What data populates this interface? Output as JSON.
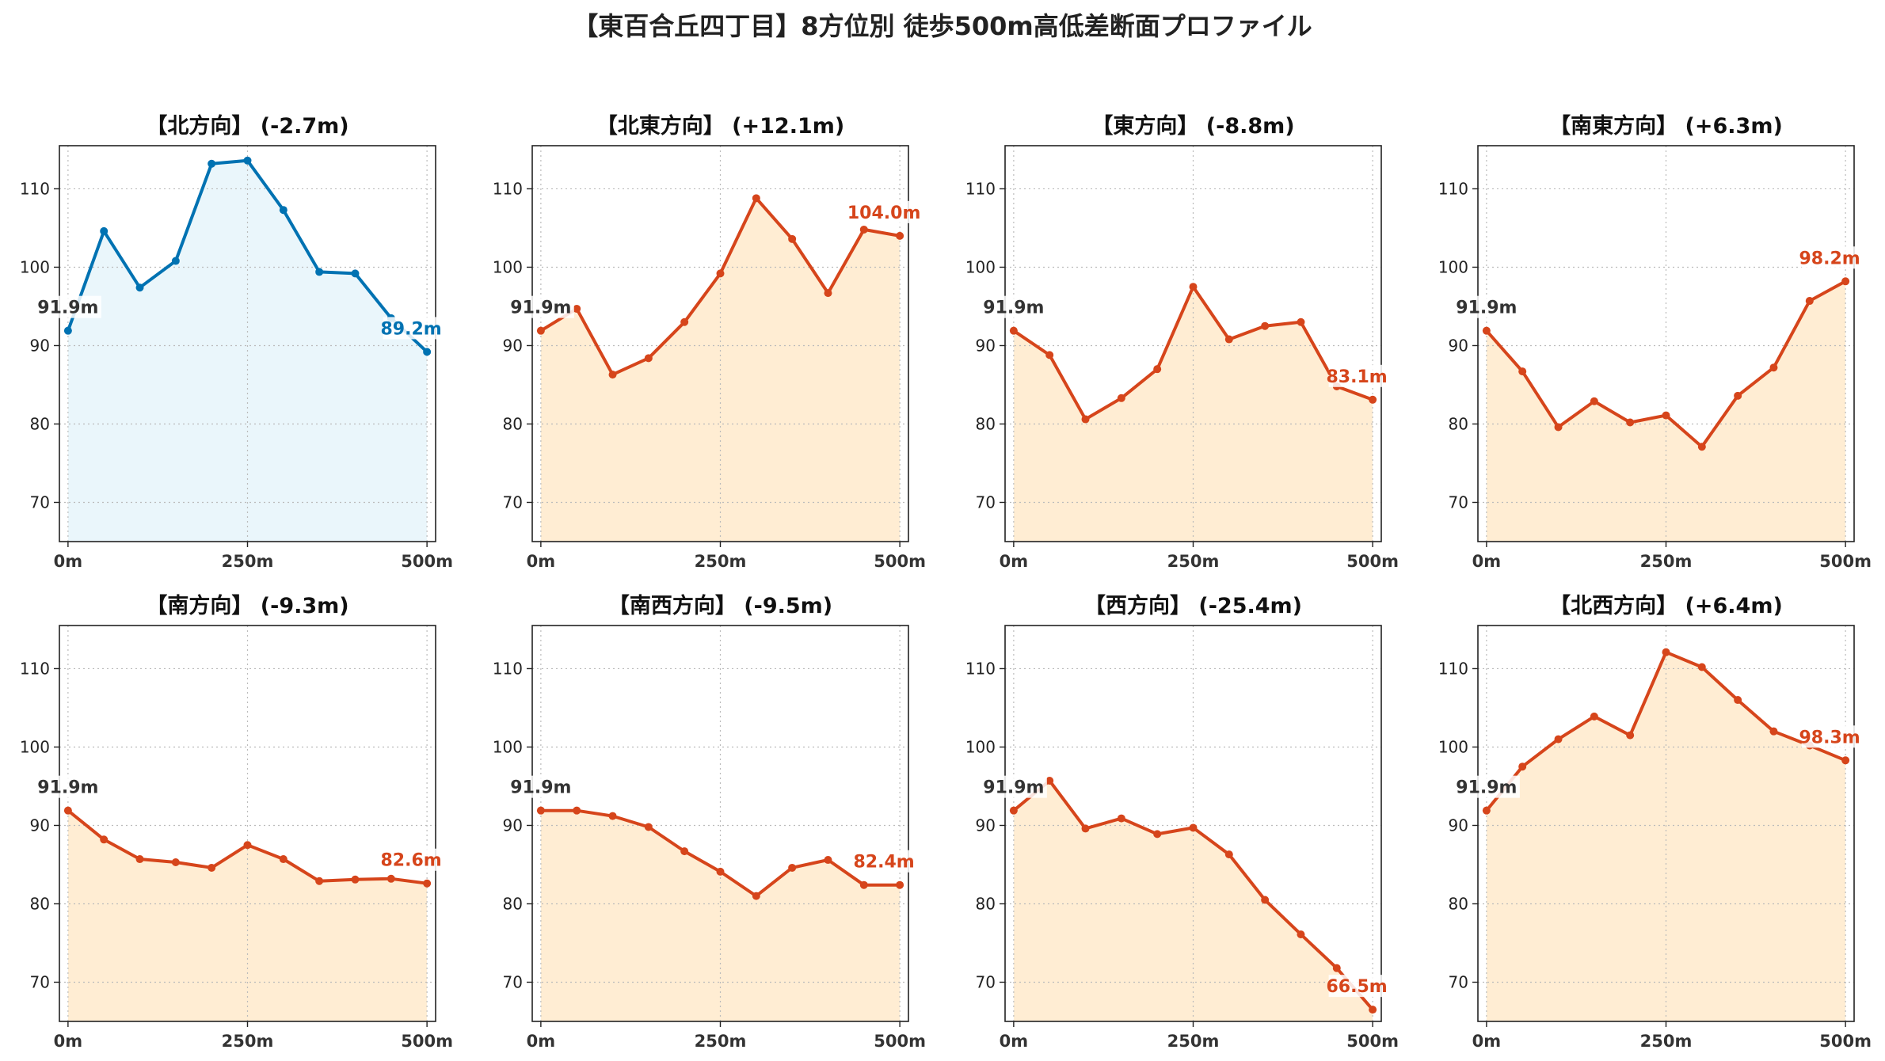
{
  "title": "【東百合丘四丁目】8方位別 徒歩500m高低差断面プロファイル",
  "colors": {
    "uphill": "#0072b2",
    "uphill_fill": "#eaf6fb",
    "downhill": "#d6451b",
    "downhill_fill": "#ffedd3",
    "start_label": "#333333",
    "grid": "#bbbbbb"
  },
  "chart_data": [
    {
      "type": "area",
      "title": "【北方向】 (-2.7m)",
      "x": [
        0,
        50,
        100,
        150,
        200,
        250,
        300,
        350,
        400,
        450,
        500
      ],
      "y": [
        91.9,
        104.6,
        97.4,
        100.8,
        113.2,
        113.6,
        107.3,
        99.4,
        99.2,
        93.5,
        89.2
      ],
      "start_label": "91.9m",
      "end_label": "89.2m",
      "style": "uphill",
      "xticks": [
        "0m",
        "250m",
        "500m"
      ],
      "yticks": [
        70,
        80,
        90,
        100,
        110
      ],
      "ylim": [
        65,
        115.5
      ],
      "xlim": [
        -12,
        512
      ],
      "grid": true
    },
    {
      "type": "area",
      "title": "【北東方向】 (+12.1m)",
      "x": [
        0,
        50,
        100,
        150,
        200,
        250,
        300,
        350,
        400,
        450,
        500
      ],
      "y": [
        91.9,
        94.7,
        86.3,
        88.4,
        93.0,
        99.2,
        108.8,
        103.6,
        96.7,
        104.8,
        104.0
      ],
      "start_label": "91.9m",
      "end_label": "104.0m",
      "style": "downhill",
      "xticks": [
        "0m",
        "250m",
        "500m"
      ],
      "yticks": [
        70,
        80,
        90,
        100,
        110
      ],
      "ylim": [
        65,
        115.5
      ],
      "xlim": [
        -12,
        512
      ],
      "grid": true
    },
    {
      "type": "area",
      "title": "【東方向】 (-8.8m)",
      "x": [
        0,
        50,
        100,
        150,
        200,
        250,
        300,
        350,
        400,
        450,
        500
      ],
      "y": [
        91.9,
        88.8,
        80.6,
        83.3,
        87.0,
        97.5,
        90.8,
        92.5,
        93.0,
        84.8,
        83.1
      ],
      "start_label": "91.9m",
      "end_label": "83.1m",
      "style": "downhill",
      "xticks": [
        "0m",
        "250m",
        "500m"
      ],
      "yticks": [
        70,
        80,
        90,
        100,
        110
      ],
      "ylim": [
        65,
        115.5
      ],
      "xlim": [
        -12,
        512
      ],
      "grid": true
    },
    {
      "type": "area",
      "title": "【南東方向】 (+6.3m)",
      "x": [
        0,
        50,
        100,
        150,
        200,
        250,
        300,
        350,
        400,
        450,
        500
      ],
      "y": [
        91.9,
        86.7,
        79.6,
        82.9,
        80.2,
        81.1,
        77.1,
        83.6,
        87.2,
        95.7,
        98.2
      ],
      "start_label": "91.9m",
      "end_label": "98.2m",
      "style": "downhill",
      "xticks": [
        "0m",
        "250m",
        "500m"
      ],
      "yticks": [
        70,
        80,
        90,
        100,
        110
      ],
      "ylim": [
        65,
        115.5
      ],
      "xlim": [
        -12,
        512
      ],
      "grid": true
    },
    {
      "type": "area",
      "title": "【南方向】 (-9.3m)",
      "x": [
        0,
        50,
        100,
        150,
        200,
        250,
        300,
        350,
        400,
        450,
        500
      ],
      "y": [
        91.9,
        88.2,
        85.7,
        85.3,
        84.6,
        87.5,
        85.7,
        82.9,
        83.1,
        83.2,
        82.6
      ],
      "start_label": "91.9m",
      "end_label": "82.6m",
      "style": "downhill",
      "xticks": [
        "0m",
        "250m",
        "500m"
      ],
      "yticks": [
        70,
        80,
        90,
        100,
        110
      ],
      "ylim": [
        65,
        115.5
      ],
      "xlim": [
        -12,
        512
      ],
      "grid": true
    },
    {
      "type": "area",
      "title": "【南西方向】 (-9.5m)",
      "x": [
        0,
        50,
        100,
        150,
        200,
        250,
        300,
        350,
        400,
        450,
        500
      ],
      "y": [
        91.9,
        91.9,
        91.2,
        89.8,
        86.7,
        84.1,
        81.0,
        84.6,
        85.6,
        82.4,
        82.4
      ],
      "start_label": "91.9m",
      "end_label": "82.4m",
      "style": "downhill",
      "xticks": [
        "0m",
        "250m",
        "500m"
      ],
      "yticks": [
        70,
        80,
        90,
        100,
        110
      ],
      "ylim": [
        65,
        115.5
      ],
      "xlim": [
        -12,
        512
      ],
      "grid": true
    },
    {
      "type": "area",
      "title": "【西方向】 (-25.4m)",
      "x": [
        0,
        50,
        100,
        150,
        200,
        250,
        300,
        350,
        400,
        450,
        500
      ],
      "y": [
        91.9,
        95.7,
        89.6,
        90.9,
        88.9,
        89.7,
        86.3,
        80.5,
        76.1,
        71.8,
        66.5
      ],
      "start_label": "91.9m",
      "end_label": "66.5m",
      "style": "downhill",
      "xticks": [
        "0m",
        "250m",
        "500m"
      ],
      "yticks": [
        70,
        80,
        90,
        100,
        110
      ],
      "ylim": [
        65,
        115.5
      ],
      "xlim": [
        -12,
        512
      ],
      "grid": true
    },
    {
      "type": "area",
      "title": "【北西方向】 (+6.4m)",
      "x": [
        0,
        50,
        100,
        150,
        200,
        250,
        300,
        350,
        400,
        450,
        500
      ],
      "y": [
        91.9,
        97.5,
        101.0,
        103.9,
        101.5,
        112.1,
        110.2,
        106.0,
        102.0,
        100.2,
        98.3
      ],
      "start_label": "91.9m",
      "end_label": "98.3m",
      "style": "downhill",
      "xticks": [
        "0m",
        "250m",
        "500m"
      ],
      "yticks": [
        70,
        80,
        90,
        100,
        110
      ],
      "ylim": [
        65,
        115.5
      ],
      "xlim": [
        -12,
        512
      ],
      "grid": true
    }
  ]
}
